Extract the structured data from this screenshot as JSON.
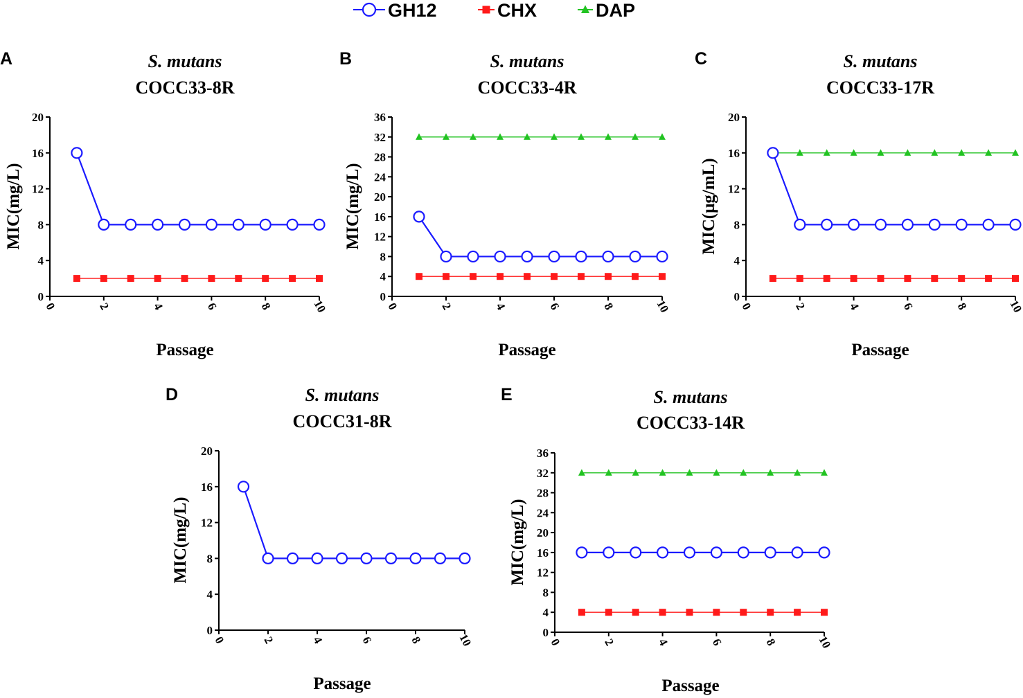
{
  "legend": [
    {
      "name": "GH12",
      "marker": "open-circle",
      "color": "#1a1aff"
    },
    {
      "name": "CHX",
      "marker": "square",
      "color": "#ff1a1a"
    },
    {
      "name": "DAP",
      "marker": "triangle",
      "color": "#22c322"
    }
  ],
  "chart_data": [
    {
      "panel": "A",
      "type": "line",
      "title": [
        "S. mutans",
        "COCC33-8R"
      ],
      "xlabel": "Passage",
      "ylabel": "MIC(mg/L)",
      "xlim": [
        0,
        10
      ],
      "xticks": [
        0,
        2,
        4,
        6,
        8,
        10
      ],
      "ylim": [
        0,
        20
      ],
      "yticks": [
        0,
        4,
        8,
        12,
        16,
        20
      ],
      "x": [
        1,
        2,
        3,
        4,
        5,
        6,
        7,
        8,
        9,
        10
      ],
      "series": [
        {
          "name": "GH12",
          "values": [
            16,
            8,
            8,
            8,
            8,
            8,
            8,
            8,
            8,
            8
          ]
        },
        {
          "name": "CHX",
          "values": [
            2,
            2,
            2,
            2,
            2,
            2,
            2,
            2,
            2,
            2
          ]
        }
      ]
    },
    {
      "panel": "B",
      "type": "line",
      "title": [
        "S. mutans",
        "COCC33-4R"
      ],
      "xlabel": "Passage",
      "ylabel": "MIC(mg/L)",
      "xlim": [
        0,
        10
      ],
      "xticks": [
        0,
        2,
        4,
        6,
        8,
        10
      ],
      "ylim": [
        0,
        36
      ],
      "yticks": [
        0,
        4,
        8,
        12,
        16,
        20,
        24,
        28,
        32,
        36
      ],
      "x": [
        1,
        2,
        3,
        4,
        5,
        6,
        7,
        8,
        9,
        10
      ],
      "series": [
        {
          "name": "GH12",
          "values": [
            16,
            8,
            8,
            8,
            8,
            8,
            8,
            8,
            8,
            8
          ]
        },
        {
          "name": "CHX",
          "values": [
            4,
            4,
            4,
            4,
            4,
            4,
            4,
            4,
            4,
            4
          ]
        },
        {
          "name": "DAP",
          "values": [
            32,
            32,
            32,
            32,
            32,
            32,
            32,
            32,
            32,
            32
          ]
        }
      ]
    },
    {
      "panel": "C",
      "type": "line",
      "title": [
        "S. mutans",
        "COCC33-17R"
      ],
      "xlabel": "Passage",
      "ylabel": "MIC(μg/mL)",
      "xlim": [
        0,
        10
      ],
      "xticks": [
        0,
        2,
        4,
        6,
        8,
        10
      ],
      "ylim": [
        0,
        20
      ],
      "yticks": [
        0,
        4,
        8,
        12,
        16,
        20
      ],
      "x": [
        1,
        2,
        3,
        4,
        5,
        6,
        7,
        8,
        9,
        10
      ],
      "series": [
        {
          "name": "GH12",
          "values": [
            16,
            8,
            8,
            8,
            8,
            8,
            8,
            8,
            8,
            8
          ]
        },
        {
          "name": "CHX",
          "values": [
            2,
            2,
            2,
            2,
            2,
            2,
            2,
            2,
            2,
            2
          ]
        },
        {
          "name": "DAP",
          "values": [
            16,
            16,
            16,
            16,
            16,
            16,
            16,
            16,
            16,
            16
          ]
        }
      ]
    },
    {
      "panel": "D",
      "type": "line",
      "title": [
        "S. mutans",
        "COCC31-8R"
      ],
      "xlabel": "Passage",
      "ylabel": "MIC(mg/L)",
      "xlim": [
        0,
        10
      ],
      "xticks": [
        0,
        2,
        4,
        6,
        8,
        10
      ],
      "ylim": [
        0,
        20
      ],
      "yticks": [
        0,
        4,
        8,
        12,
        16,
        20
      ],
      "x": [
        1,
        2,
        3,
        4,
        5,
        6,
        7,
        8,
        9,
        10
      ],
      "series": [
        {
          "name": "GH12",
          "values": [
            16,
            8,
            8,
            8,
            8,
            8,
            8,
            8,
            8,
            8
          ]
        }
      ]
    },
    {
      "panel": "E",
      "type": "line",
      "title": [
        "S. mutans",
        "COCC33-14R"
      ],
      "xlabel": "Passage",
      "ylabel": "MIC(mg/L)",
      "xlim": [
        0,
        10
      ],
      "xticks": [
        0,
        2,
        4,
        6,
        8,
        10
      ],
      "ylim": [
        0,
        36
      ],
      "yticks": [
        0,
        4,
        8,
        12,
        16,
        20,
        24,
        28,
        32,
        36
      ],
      "x": [
        1,
        2,
        3,
        4,
        5,
        6,
        7,
        8,
        9,
        10
      ],
      "series": [
        {
          "name": "GH12",
          "values": [
            16,
            16,
            16,
            16,
            16,
            16,
            16,
            16,
            16,
            16
          ]
        },
        {
          "name": "CHX",
          "values": [
            4,
            4,
            4,
            4,
            4,
            4,
            4,
            4,
            4,
            4
          ]
        },
        {
          "name": "DAP",
          "values": [
            32,
            32,
            32,
            32,
            32,
            32,
            32,
            32,
            32,
            32
          ]
        }
      ]
    }
  ]
}
